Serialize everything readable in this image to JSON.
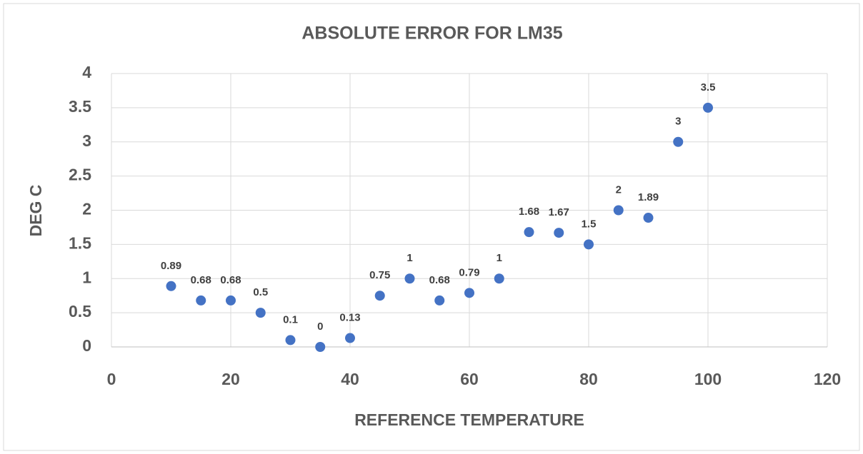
{
  "chart_data": {
    "type": "scatter",
    "title": "ABSOLUTE ERROR FOR LM35",
    "x_label": "REFERENCE TEMPERATURE",
    "y_label": "DEG C",
    "series": [
      {
        "color": "#4472c4",
        "x": [
          10,
          15,
          20,
          25,
          30,
          35,
          40,
          45,
          50,
          55,
          60,
          65,
          70,
          75,
          80,
          85,
          90,
          95,
          100
        ],
        "values": [
          0.89,
          0.68,
          0.68,
          0.5,
          0.1,
          0,
          0.13,
          0.75,
          1,
          0.68,
          0.79,
          1,
          1.68,
          1.67,
          1.5,
          2,
          1.89,
          3,
          3.5
        ]
      }
    ],
    "xlim": [
      0,
      120
    ],
    "xticks": [
      0,
      20,
      40,
      60,
      80,
      100,
      120
    ],
    "ylim": [
      0,
      4
    ],
    "yticks": [
      0,
      0.5,
      1,
      1.5,
      2,
      2.5,
      3,
      3.5,
      4
    ],
    "grid": true,
    "data_labels": true
  }
}
